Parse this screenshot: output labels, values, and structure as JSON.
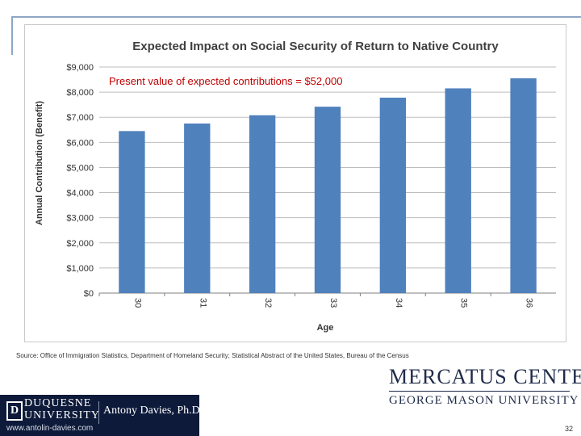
{
  "chart_data": {
    "type": "bar",
    "title": "Expected Impact on Social Security of Return to Native Country",
    "annotation": "Present value of expected contributions = $52,000",
    "xlabel": "Age",
    "ylabel": "Annual Contribution (Benefit)",
    "categories": [
      "30",
      "31",
      "32",
      "33",
      "34",
      "35",
      "36"
    ],
    "values": [
      6450,
      6750,
      7080,
      7420,
      7780,
      8150,
      8550
    ],
    "ylim": [
      0,
      9000
    ],
    "yticks": [
      0,
      1000,
      2000,
      3000,
      4000,
      5000,
      6000,
      7000,
      8000,
      9000
    ],
    "ytick_labels": [
      "$0",
      "$1,000",
      "$2,000",
      "$3,000",
      "$4,000",
      "$5,000",
      "$6,000",
      "$7,000",
      "$8,000",
      "$9,000"
    ],
    "grid": true,
    "legend": "none",
    "bar_color": "#4f81bd",
    "annotation_color": "#c00000"
  },
  "source": "Source:  Office of Immigration Statistics, Department of Homeland Security; Statistical Abstract of the United States, Bureau of the Census",
  "branding": {
    "mercatus_title": "MERCATUS CENTER",
    "mercatus_sub": "GEORGE MASON UNIVERSITY",
    "duquesne_line1": "DUQUESNE",
    "duquesne_line2": "UNIVERSITY",
    "author": "Antony Davies, Ph.D.",
    "website": "www.antolin-davies.com"
  },
  "page_number": "32"
}
